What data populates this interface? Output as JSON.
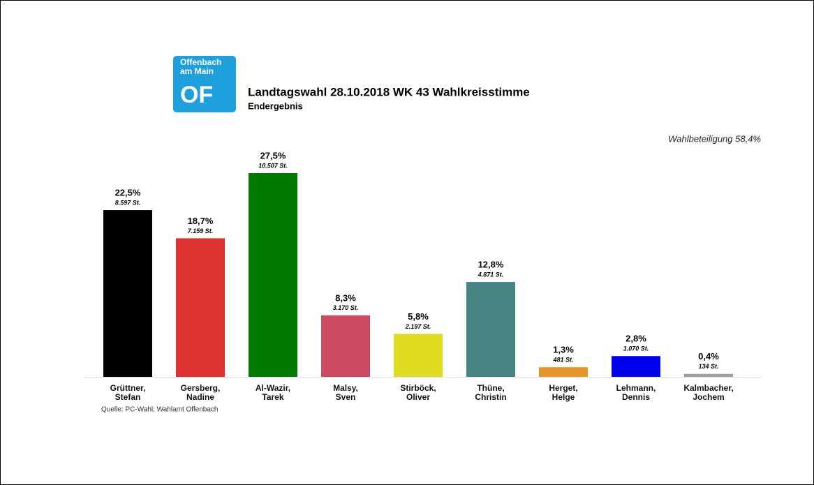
{
  "logo": {
    "line1": "Offenbach",
    "line2": "am Main",
    "short": "OF"
  },
  "chart_data": {
    "type": "bar",
    "title": "Landtagswahl 28.10.2018 WK 43 Wahlkreisstimme",
    "subtitle": "Endergebnis",
    "annotation": "Wahlbeteiligung 58,4%",
    "source": "Quelle: PC-Wahl; Wahlamt Offenbach",
    "categories": [
      "Grüttner,\nStefan",
      "Gersberg,\nNadine",
      "Al-Wazir,\nTarek",
      "Malsy,\nSven",
      "Stirböck,\nOliver",
      "Thüne,\nChristin",
      "Herget,\nHelge",
      "Lehmann,\nDennis",
      "Kalmbacher,\nJochem"
    ],
    "values": [
      22.5,
      18.7,
      27.5,
      8.3,
      5.8,
      12.8,
      1.3,
      2.8,
      0.4
    ],
    "value_labels": [
      "22,5%",
      "18,7%",
      "27,5%",
      "8,3%",
      "5,8%",
      "12,8%",
      "1,3%",
      "2,8%",
      "0,4%"
    ],
    "vote_labels": [
      "8.597 St.",
      "7.159 St.",
      "10.507 St.",
      "3.170 St.",
      "2.197 St.",
      "4.871 St.",
      "481 St.",
      "1.070 St.",
      "134 St."
    ],
    "colors": [
      "#000000",
      "#dc3232",
      "#007a00",
      "#cc4a62",
      "#e0dc22",
      "#468582",
      "#e5952a",
      "#0000ee",
      "#a0a0a0"
    ],
    "ylim": [
      0,
      27.5
    ]
  }
}
